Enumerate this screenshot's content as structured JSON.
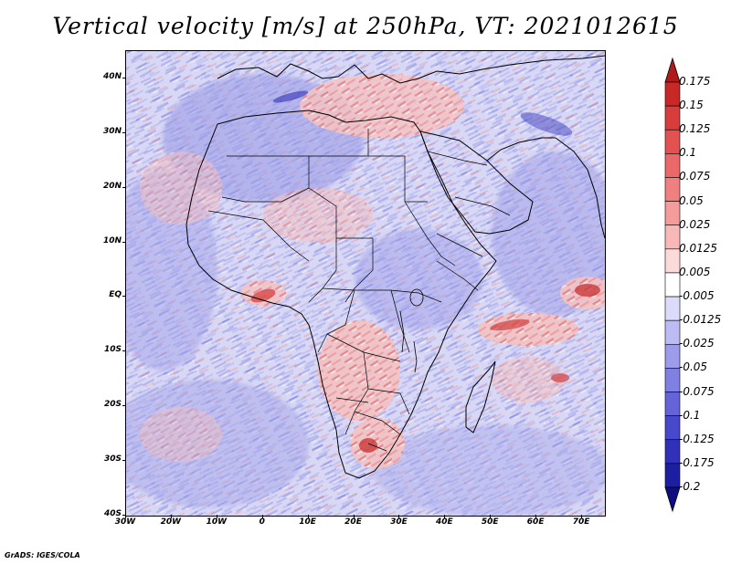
{
  "title": "Vertical velocity [m/s] at 250hPa, VT: 2021012615",
  "credit": "GrADS: IGES/COLA",
  "map": {
    "lon_range": [
      -30,
      75
    ],
    "lat_range": [
      -40,
      45
    ],
    "lat_labels": [
      "40N",
      "30N",
      "20N",
      "10N",
      "EQ",
      "10S",
      "20S",
      "30S",
      "40S"
    ],
    "lat_values": [
      40,
      30,
      20,
      10,
      0,
      -10,
      -20,
      -30,
      -40
    ],
    "lon_labels": [
      "30W",
      "20W",
      "10W",
      "0",
      "10E",
      "20E",
      "30E",
      "40E",
      "50E",
      "60E",
      "70E"
    ],
    "lon_values": [
      -30,
      -20,
      -10,
      0,
      10,
      20,
      30,
      40,
      50,
      60,
      70
    ]
  },
  "colorbar": {
    "labels": [
      "0.175",
      "0.15",
      "0.125",
      "0.1",
      "0.075",
      "0.05",
      "0.025",
      "0.0125",
      "0.005",
      "-0.005",
      "-0.0125",
      "-0.025",
      "-0.05",
      "-0.075",
      "-0.1",
      "-0.125",
      "-0.175",
      "-0.2"
    ],
    "colors": [
      "#b01a1a",
      "#c82828",
      "#d83c3c",
      "#e25252",
      "#ea6868",
      "#f08080",
      "#f49c9c",
      "#f8b8b8",
      "#fcdada",
      "#ffffff",
      "#dcdcfa",
      "#bcbcf2",
      "#9c9cea",
      "#8080e2",
      "#6464d8",
      "#4848cc",
      "#3030b8",
      "#1e1ea0",
      "#0e0e80"
    ]
  }
}
